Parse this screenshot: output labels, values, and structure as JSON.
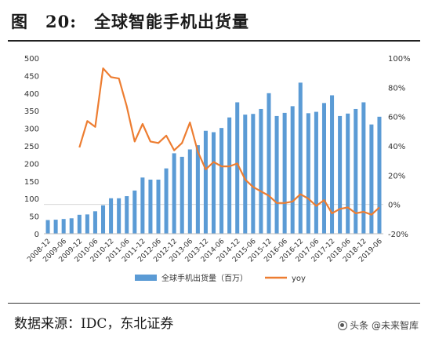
{
  "header": {
    "title": "图　20:　全球智能手机出货量"
  },
  "footer": {
    "source": "数据来源：IDC，东北证券",
    "watermark": "头条 @未来智库"
  },
  "colors": {
    "bar": "#5b9bd5",
    "line": "#ed7d31",
    "grid": "#d9d9d9",
    "axis_text": "#333333"
  },
  "chart_data": {
    "type": "bar",
    "combo": "bar+line",
    "x": [
      "2008-12",
      "2009-03",
      "2009-06",
      "2009-09",
      "2009-12",
      "2010-03",
      "2010-06",
      "2010-09",
      "2010-12",
      "2011-03",
      "2011-06",
      "2011-09",
      "2011-12",
      "2012-03",
      "2012-06",
      "2012-09",
      "2012-12",
      "2013-03",
      "2013-06",
      "2013-09",
      "2013-12",
      "2014-03",
      "2014-06",
      "2014-09",
      "2014-12",
      "2015-03",
      "2015-06",
      "2015-09",
      "2015-12",
      "2016-03",
      "2016-06",
      "2016-09",
      "2016-12",
      "2017-03",
      "2017-06",
      "2017-09",
      "2017-12",
      "2018-03",
      "2018-06",
      "2018-09",
      "2018-12",
      "2019-03",
      "2019-06"
    ],
    "x_tick_labels": [
      "2008-12",
      "2009-06",
      "2009-12",
      "2010-06",
      "2010-12",
      "2011-06",
      "2011-12",
      "2012-06",
      "2012-12",
      "2013-06",
      "2013-12",
      "2014-06",
      "2014-12",
      "2015-06",
      "2015-12",
      "2016-06",
      "2016-12",
      "2017-06",
      "2017-12",
      "2018-06",
      "2018-12",
      "2019-06"
    ],
    "series": [
      {
        "name": "全球手机出货量（百万）",
        "type": "bar",
        "axis": "left",
        "values": [
          39,
          40,
          42,
          44,
          54,
          55,
          64,
          81,
          101,
          101,
          107,
          123,
          160,
          154,
          154,
          186,
          229,
          219,
          240,
          252,
          293,
          289,
          301,
          331,
          374,
          339,
          341,
          355,
          400,
          335,
          344,
          363,
          430,
          343,
          347,
          372,
          394,
          335,
          342,
          355,
          374,
          311,
          333
        ]
      },
      {
        "name": "yoy",
        "type": "line",
        "axis": "right",
        "values": [
          null,
          null,
          null,
          null,
          39,
          57,
          53,
          93,
          87,
          86,
          67,
          43,
          55,
          43,
          42,
          47,
          37,
          42,
          56,
          36,
          24,
          29,
          26,
          26,
          28,
          17,
          12,
          9,
          6,
          1,
          1,
          2,
          7,
          4,
          -1,
          3,
          -6,
          -3,
          -2,
          -6,
          -5,
          -7,
          -2
        ]
      }
    ],
    "y_left": {
      "lim": [
        0,
        500
      ],
      "ticks": [
        0,
        50,
        100,
        150,
        200,
        250,
        300,
        350,
        400,
        450,
        500
      ]
    },
    "y_right": {
      "lim": [
        -20,
        100
      ],
      "ticks": [
        -20,
        0,
        20,
        40,
        60,
        80,
        100
      ],
      "tick_labels": [
        "-20%",
        "0%",
        "20%",
        "40%",
        "60%",
        "80%",
        "100%"
      ]
    },
    "grid": false,
    "legend_position": "bottom"
  }
}
